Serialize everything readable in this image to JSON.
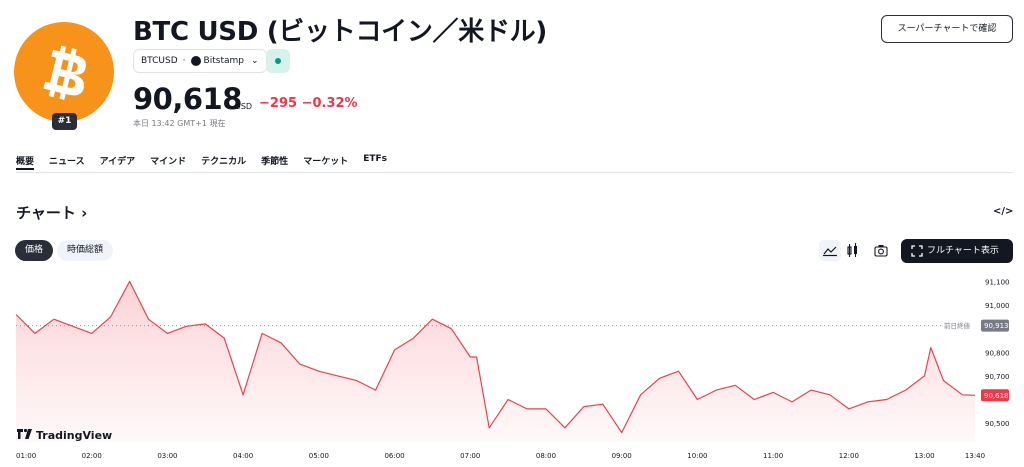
{
  "header": {
    "title": "BTC USD (ビットコイン／米ドル)",
    "rank": "#1",
    "symbol": "BTCUSD",
    "exchange": "Bitstamp",
    "super_chart_button": "スーパーチャートで確認",
    "logo_icon": "bitcoin-logo-icon"
  },
  "quote": {
    "price": "90,618",
    "unit": "USD",
    "change": "−295",
    "change_pct": "−0.32%",
    "timestamp": "本日 13:42 GMT+1 現在"
  },
  "tabs": [
    {
      "label": "概要",
      "active": true
    },
    {
      "label": "ニュース"
    },
    {
      "label": "アイデア"
    },
    {
      "label": "マインド"
    },
    {
      "label": "テクニカル"
    },
    {
      "label": "季節性"
    },
    {
      "label": "マーケット"
    },
    {
      "label": "ETFs"
    }
  ],
  "chart_section": {
    "heading": "チャート ›",
    "embed_icon": "</>",
    "chip_price": "価格",
    "chip_market_cap": "時価総額",
    "fullscreen_button": "フルチャート表示",
    "brand": "TradingView"
  },
  "colors": {
    "bitcoin_orange": "#f7931a",
    "negative": "#f23645",
    "line": "#e8424f",
    "live": "#089981"
  },
  "chart_data": {
    "type": "area",
    "x_ticks": [
      "01:00",
      "02:00",
      "03:00",
      "04:00",
      "05:00",
      "06:00",
      "07:00",
      "08:00",
      "09:00",
      "10:00",
      "11:00",
      "12:00",
      "13:00",
      "13:40"
    ],
    "y_ticks": [
      91100,
      91000,
      90800,
      90700,
      90500
    ],
    "y_tick_labels": [
      "91,100",
      "91,000",
      "90,800",
      "90,700",
      "90,500"
    ],
    "ylim": [
      90420,
      91140
    ],
    "prev_close": {
      "label": "前日終値",
      "value": 90913,
      "text": "90,913"
    },
    "last": {
      "value": 90618,
      "text": "90,618"
    },
    "grid": false,
    "series": [
      {
        "x": [
          "01:00",
          "01:15",
          "01:30",
          "01:45",
          "02:00",
          "02:15",
          "02:30",
          "02:45",
          "03:00",
          "03:15",
          "03:30",
          "03:45",
          "04:00",
          "04:15",
          "04:30",
          "04:45",
          "05:00",
          "05:15",
          "05:30",
          "05:45",
          "06:00",
          "06:15",
          "06:30",
          "06:45",
          "07:00",
          "07:05",
          "07:15",
          "07:30",
          "07:45",
          "08:00",
          "08:15",
          "08:30",
          "08:45",
          "09:00",
          "09:15",
          "09:30",
          "09:45",
          "10:00",
          "10:15",
          "10:30",
          "10:45",
          "11:00",
          "11:15",
          "11:30",
          "11:45",
          "12:00",
          "12:15",
          "12:30",
          "12:45",
          "13:00",
          "13:05",
          "13:15",
          "13:30",
          "13:40"
        ],
        "values": [
          90960,
          90880,
          90940,
          90910,
          90880,
          90950,
          91100,
          90940,
          90880,
          90910,
          90920,
          90860,
          90620,
          90880,
          90840,
          90750,
          90720,
          90700,
          90680,
          90640,
          90810,
          90860,
          90940,
          90900,
          90780,
          90780,
          90480,
          90600,
          90560,
          90560,
          90480,
          90570,
          90580,
          90460,
          90620,
          90690,
          90720,
          90600,
          90640,
          90660,
          90600,
          90630,
          90590,
          90640,
          90620,
          90560,
          90590,
          90600,
          90640,
          90700,
          90820,
          90680,
          90620,
          90618
        ]
      }
    ]
  }
}
